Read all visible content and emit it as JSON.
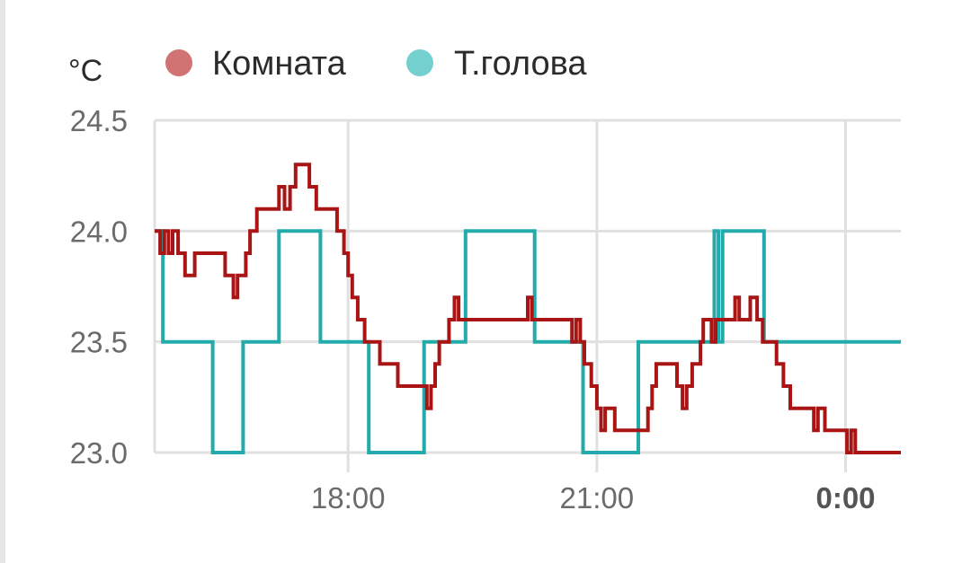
{
  "chart_data": {
    "type": "line",
    "step": true,
    "unit": "°C",
    "y_ticks": [
      "24.5",
      "24.0",
      "23.5",
      "23.0"
    ],
    "ylim": [
      23.0,
      24.5
    ],
    "x_ticks": [
      {
        "label": "18:00",
        "hour": 18,
        "bold": false
      },
      {
        "label": "21:00",
        "hour": 21,
        "bold": false
      },
      {
        "label": "0:00",
        "hour": 24,
        "bold": true
      }
    ],
    "xlim": [
      "15:40",
      "24:40"
    ],
    "grid": true,
    "legend_position": "top",
    "series": [
      {
        "name": "Комната",
        "color": "#a91515",
        "legend_color": "#d27373",
        "points": [
          [
            "15:40",
            24.0
          ],
          [
            "15:44",
            23.9
          ],
          [
            "15:47",
            24.0
          ],
          [
            "15:50",
            23.9
          ],
          [
            "15:53",
            24.0
          ],
          [
            "15:57",
            23.9
          ],
          [
            "16:02",
            23.8
          ],
          [
            "16:09",
            23.9
          ],
          [
            "16:31",
            23.8
          ],
          [
            "16:37",
            23.7
          ],
          [
            "16:40",
            23.8
          ],
          [
            "16:46",
            23.9
          ],
          [
            "16:49",
            24.0
          ],
          [
            "16:54",
            24.1
          ],
          [
            "17:10",
            24.2
          ],
          [
            "17:14",
            24.1
          ],
          [
            "17:18",
            24.2
          ],
          [
            "17:22",
            24.3
          ],
          [
            "17:32",
            24.2
          ],
          [
            "17:37",
            24.1
          ],
          [
            "17:52",
            24.0
          ],
          [
            "17:57",
            23.9
          ],
          [
            "18:00",
            23.8
          ],
          [
            "18:03",
            23.7
          ],
          [
            "18:07",
            23.6
          ],
          [
            "18:12",
            23.5
          ],
          [
            "18:23",
            23.4
          ],
          [
            "18:36",
            23.3
          ],
          [
            "18:57",
            23.2
          ],
          [
            "19:00",
            23.3
          ],
          [
            "19:03",
            23.4
          ],
          [
            "19:06",
            23.5
          ],
          [
            "19:13",
            23.6
          ],
          [
            "19:17",
            23.7
          ],
          [
            "19:20",
            23.6
          ],
          [
            "20:10",
            23.7
          ],
          [
            "20:13",
            23.6
          ],
          [
            "20:42",
            23.5
          ],
          [
            "20:45",
            23.6
          ],
          [
            "20:48",
            23.5
          ],
          [
            "20:51",
            23.4
          ],
          [
            "20:56",
            23.3
          ],
          [
            "21:00",
            23.2
          ],
          [
            "21:03",
            23.1
          ],
          [
            "21:06",
            23.2
          ],
          [
            "21:13",
            23.1
          ],
          [
            "21:37",
            23.2
          ],
          [
            "21:40",
            23.3
          ],
          [
            "21:43",
            23.4
          ],
          [
            "21:58",
            23.3
          ],
          [
            "22:02",
            23.2
          ],
          [
            "22:05",
            23.3
          ],
          [
            "22:09",
            23.4
          ],
          [
            "22:15",
            23.5
          ],
          [
            "22:17",
            23.6
          ],
          [
            "22:23",
            23.5
          ],
          [
            "22:26",
            23.6
          ],
          [
            "22:40",
            23.7
          ],
          [
            "22:43",
            23.6
          ],
          [
            "22:51",
            23.7
          ],
          [
            "22:56",
            23.6
          ],
          [
            "23:00",
            23.5
          ],
          [
            "23:10",
            23.4
          ],
          [
            "23:15",
            23.3
          ],
          [
            "23:20",
            23.2
          ],
          [
            "23:37",
            23.1
          ],
          [
            "23:40",
            23.2
          ],
          [
            "23:45",
            23.1
          ],
          [
            "23:58",
            23.1
          ],
          [
            "24:01",
            23.0
          ],
          [
            "24:04",
            23.1
          ],
          [
            "24:07",
            23.0
          ],
          [
            "24:40",
            23.0
          ]
        ]
      },
      {
        "name": "Т.голова",
        "color": "#23aaaa",
        "legend_color": "#74cfcf",
        "points": [
          [
            "15:40",
            24.0
          ],
          [
            "15:46",
            23.5
          ],
          [
            "16:22",
            23.0
          ],
          [
            "16:44",
            23.5
          ],
          [
            "17:10",
            24.0
          ],
          [
            "17:40",
            23.5
          ],
          [
            "18:15",
            23.0
          ],
          [
            "18:55",
            23.5
          ],
          [
            "19:25",
            24.0
          ],
          [
            "20:15",
            23.5
          ],
          [
            "20:50",
            23.0
          ],
          [
            "21:30",
            23.5
          ],
          [
            "22:25",
            24.0
          ],
          [
            "22:28",
            23.5
          ],
          [
            "22:31",
            24.0
          ],
          [
            "23:01",
            23.5
          ],
          [
            "24:40",
            23.5
          ]
        ]
      }
    ]
  }
}
